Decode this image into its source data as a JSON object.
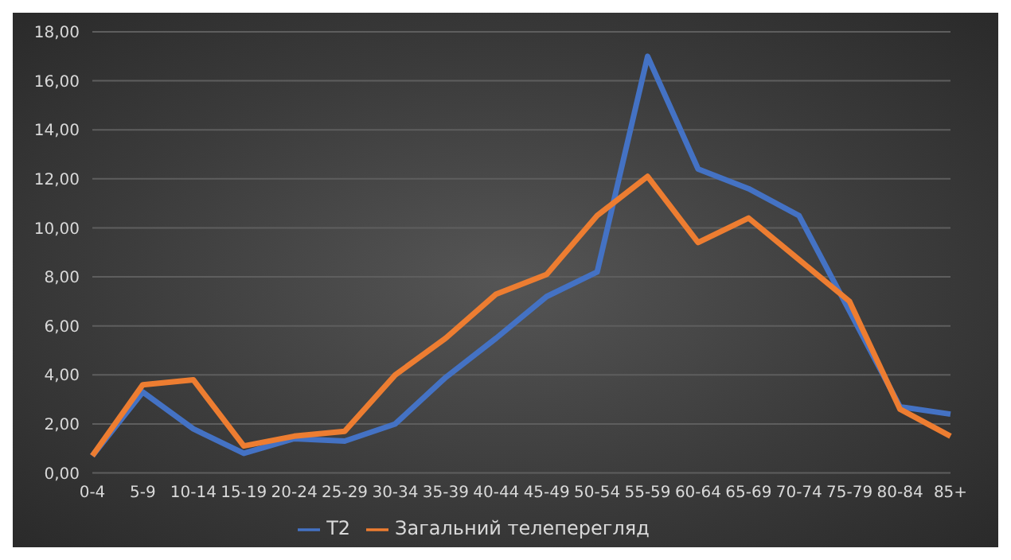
{
  "chart_data": {
    "type": "line",
    "categories": [
      "0-4",
      "5-9",
      "10-14",
      "15-19",
      "20-24",
      "25-29",
      "30-34",
      "35-39",
      "40-44",
      "45-49",
      "50-54",
      "55-59",
      "60-64",
      "65-69",
      "70-74",
      "75-79",
      "80-84",
      "85+"
    ],
    "series": [
      {
        "name": "T2",
        "color": "#4472c4",
        "values": [
          0.7,
          3.3,
          1.8,
          0.8,
          1.4,
          1.3,
          2.0,
          3.9,
          5.5,
          7.2,
          8.2,
          17.0,
          12.4,
          11.6,
          10.5,
          6.6,
          2.7,
          2.4
        ]
      },
      {
        "name": "Загальний телеперегляд",
        "color": "#ed7d31",
        "values": [
          0.7,
          3.6,
          3.8,
          1.1,
          1.5,
          1.7,
          4.0,
          5.5,
          7.3,
          8.1,
          10.5,
          12.1,
          9.4,
          10.4,
          8.7,
          7.0,
          2.6,
          1.5
        ]
      }
    ],
    "ylim": [
      0,
      18
    ],
    "yticks": [
      {
        "value": 0,
        "label": "0,00"
      },
      {
        "value": 2,
        "label": "2,00"
      },
      {
        "value": 4,
        "label": "4,00"
      },
      {
        "value": 6,
        "label": "6,00"
      },
      {
        "value": 8,
        "label": "8,00"
      },
      {
        "value": 10,
        "label": "10,00"
      },
      {
        "value": 12,
        "label": "12,00"
      },
      {
        "value": 14,
        "label": "14,00"
      },
      {
        "value": 16,
        "label": "16,00"
      },
      {
        "value": 18,
        "label": "18,00"
      }
    ],
    "grid": "y",
    "legend": "bottom",
    "marker": "none",
    "line_style": "solid"
  }
}
